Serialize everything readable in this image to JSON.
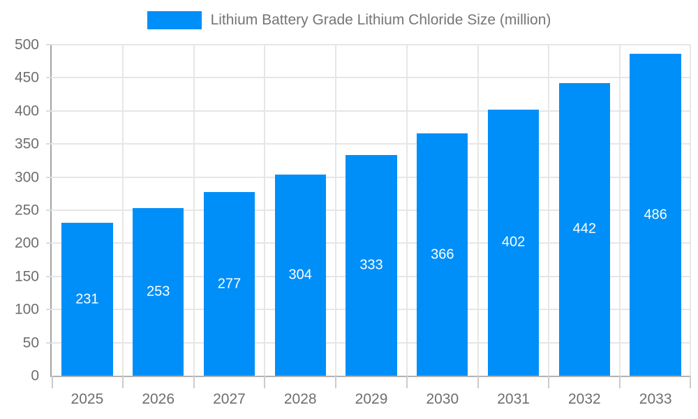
{
  "chart_data": {
    "type": "bar",
    "title": "Lithium Battery Grade Lithium Chloride Size (million)",
    "categories": [
      "2025",
      "2026",
      "2027",
      "2028",
      "2029",
      "2030",
      "2031",
      "2032",
      "2033"
    ],
    "values": [
      231,
      253,
      277,
      304,
      333,
      366,
      402,
      442,
      486
    ],
    "series": [
      {
        "name": "Lithium Battery Grade Lithium Chloride Size (million)",
        "values": [
          231,
          253,
          277,
          304,
          333,
          366,
          402,
          442,
          486
        ]
      }
    ],
    "xlabel": "",
    "ylabel": "",
    "ylim": [
      0,
      500
    ],
    "ytick_step": 50,
    "ytick_labels": [
      "0",
      "50",
      "100",
      "150",
      "200",
      "250",
      "300",
      "350",
      "400",
      "450",
      "500"
    ],
    "grid": true,
    "legend_position": "top",
    "bar_color": "#008FF8",
    "bar_label_color": "#ffffff",
    "axis_label_color": "#6e6e6e",
    "legend_text_color": "#757575",
    "gridline_color": "#e6e6e6"
  }
}
